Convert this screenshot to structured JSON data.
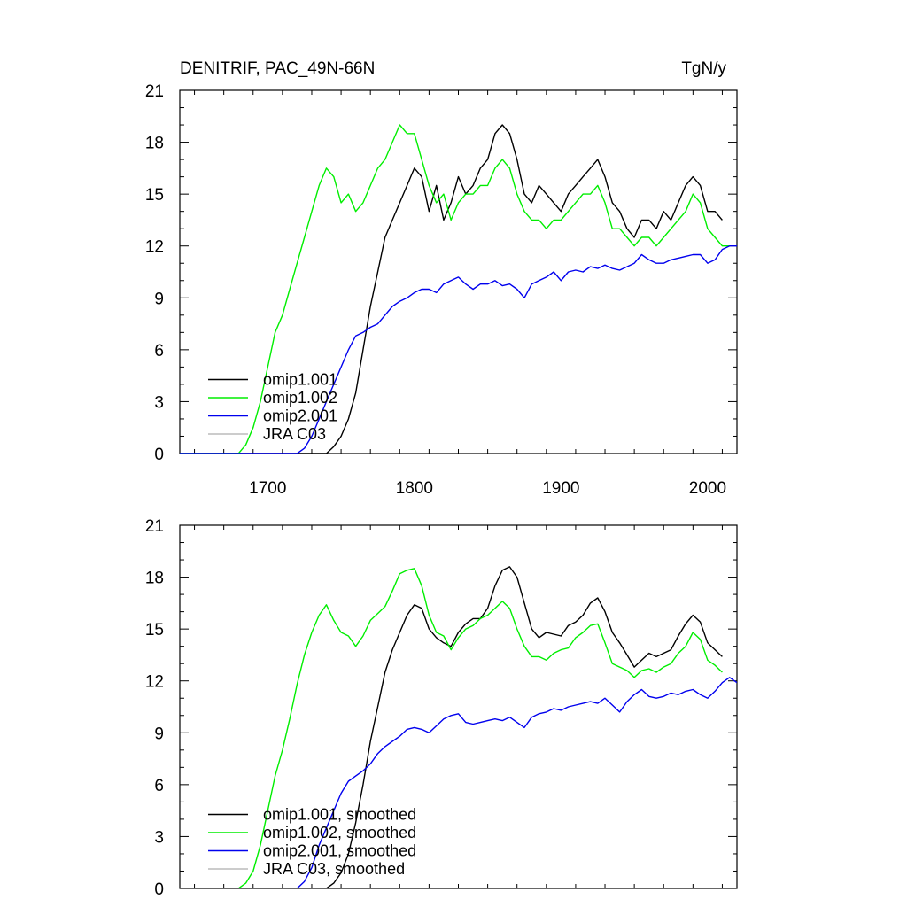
{
  "figure": {
    "title_left": "DENITRIF, PAC_49N-66N",
    "title_right": "TgN/y"
  },
  "chart_data": [
    {
      "type": "line",
      "panel": "top",
      "xlim": [
        1640,
        2020
      ],
      "ylim": [
        0,
        21
      ],
      "yticks": [
        0,
        3,
        6,
        9,
        12,
        15,
        18,
        21
      ],
      "xticks": [
        1700,
        1800,
        1900,
        2000
      ],
      "show_x_tick_labels": true,
      "legend_position": "bottom-left",
      "series": [
        {
          "name": "omip1.001",
          "color": "#000000",
          "x": [
            1640,
            1740,
            1745,
            1750,
            1755,
            1760,
            1765,
            1770,
            1775,
            1780,
            1785,
            1790,
            1795,
            1800,
            1805,
            1810,
            1815,
            1820,
            1825,
            1830,
            1835,
            1840,
            1845,
            1850,
            1855,
            1860,
            1865,
            1870,
            1875,
            1880,
            1885,
            1890,
            1895,
            1900,
            1905,
            1910,
            1915,
            1920,
            1925,
            1930,
            1935,
            1940,
            1945,
            1950,
            1955,
            1960,
            1965,
            1970,
            1975,
            1980,
            1985,
            1990,
            1995,
            2000,
            2005,
            2010
          ],
          "y": [
            0,
            0,
            0.4,
            1.0,
            2.0,
            3.5,
            6,
            8.5,
            10.5,
            12.5,
            13.5,
            14.5,
            15.5,
            16.5,
            16.0,
            14.0,
            15.5,
            13.5,
            14.5,
            16.0,
            15.0,
            15.5,
            16.5,
            17.0,
            18.5,
            19.0,
            18.5,
            17.0,
            15.0,
            14.5,
            15.5,
            15.0,
            14.5,
            14.0,
            15.0,
            15.5,
            16.0,
            16.5,
            17.0,
            16.0,
            14.5,
            14.0,
            13.0,
            12.5,
            13.5,
            13.5,
            13.0,
            14.0,
            13.5,
            14.5,
            15.5,
            16.0,
            15.5,
            14.0,
            14.0,
            13.5
          ]
        },
        {
          "name": "omip1.002",
          "color": "#00ee00",
          "x": [
            1640,
            1680,
            1685,
            1690,
            1695,
            1700,
            1705,
            1710,
            1715,
            1720,
            1725,
            1730,
            1735,
            1740,
            1745,
            1750,
            1755,
            1760,
            1765,
            1770,
            1775,
            1780,
            1785,
            1790,
            1795,
            1800,
            1805,
            1810,
            1815,
            1820,
            1825,
            1830,
            1835,
            1840,
            1845,
            1850,
            1855,
            1860,
            1865,
            1870,
            1875,
            1880,
            1885,
            1890,
            1895,
            1900,
            1905,
            1910,
            1915,
            1920,
            1925,
            1930,
            1935,
            1940,
            1945,
            1950,
            1955,
            1960,
            1965,
            1970,
            1975,
            1980,
            1985,
            1990,
            1995,
            2000,
            2005,
            2010,
            2015
          ],
          "y": [
            0,
            0,
            0.5,
            1.5,
            3.0,
            5.0,
            7.0,
            8.0,
            9.5,
            11.0,
            12.5,
            14.0,
            15.5,
            16.5,
            16.0,
            14.5,
            15.0,
            14.0,
            14.5,
            15.5,
            16.5,
            17.0,
            18.0,
            19.0,
            18.5,
            18.5,
            17.0,
            15.5,
            14.5,
            15.0,
            13.5,
            14.5,
            15.0,
            15.0,
            15.5,
            15.5,
            16.5,
            17.0,
            16.5,
            15.0,
            14.0,
            13.5,
            13.5,
            13.0,
            13.5,
            13.5,
            14.0,
            14.5,
            15.0,
            15.0,
            15.5,
            14.5,
            13.0,
            13.0,
            12.5,
            12.0,
            12.5,
            12.5,
            12.0,
            12.5,
            13.0,
            13.5,
            14.0,
            15.0,
            14.5,
            13.0,
            12.5,
            12.0,
            12.0
          ]
        },
        {
          "name": "omip2.001",
          "color": "#0000ee",
          "x": [
            1640,
            1720,
            1725,
            1730,
            1735,
            1740,
            1745,
            1750,
            1755,
            1760,
            1765,
            1770,
            1775,
            1780,
            1785,
            1790,
            1795,
            1800,
            1805,
            1810,
            1815,
            1820,
            1825,
            1830,
            1835,
            1840,
            1845,
            1850,
            1855,
            1860,
            1865,
            1870,
            1875,
            1880,
            1885,
            1890,
            1895,
            1900,
            1905,
            1910,
            1915,
            1920,
            1925,
            1930,
            1935,
            1940,
            1945,
            1950,
            1955,
            1960,
            1965,
            1970,
            1975,
            1980,
            1985,
            1990,
            1995,
            2000,
            2005,
            2010,
            2015,
            2020
          ],
          "y": [
            0,
            0,
            0.3,
            1.0,
            2.0,
            3.0,
            4.0,
            5.0,
            6.0,
            6.8,
            7.0,
            7.3,
            7.5,
            8.0,
            8.5,
            8.8,
            9.0,
            9.3,
            9.5,
            9.5,
            9.3,
            9.8,
            10.0,
            10.2,
            9.8,
            9.5,
            9.8,
            9.8,
            10.0,
            9.7,
            9.8,
            9.5,
            9.0,
            9.8,
            10.0,
            10.2,
            10.5,
            10.0,
            10.5,
            10.6,
            10.5,
            10.8,
            10.7,
            10.9,
            10.7,
            10.6,
            10.8,
            11.0,
            11.5,
            11.2,
            11.0,
            11.0,
            11.2,
            11.3,
            11.4,
            11.5,
            11.5,
            11.0,
            11.2,
            11.8,
            12.0,
            12.0
          ]
        },
        {
          "name": "JRA C03",
          "color": "#bbbbbb",
          "x": [],
          "y": []
        }
      ]
    },
    {
      "type": "line",
      "panel": "bottom",
      "xlim": [
        1640,
        2020
      ],
      "ylim": [
        0,
        21
      ],
      "yticks": [
        0,
        3,
        6,
        9,
        12,
        15,
        18,
        21
      ],
      "xticks": [
        1700,
        1800,
        1900,
        2000
      ],
      "show_x_tick_labels": false,
      "legend_position": "bottom-left",
      "series": [
        {
          "name": "omip1.001, smoothed",
          "color": "#000000",
          "x": [
            1640,
            1740,
            1745,
            1750,
            1755,
            1760,
            1765,
            1770,
            1775,
            1780,
            1785,
            1790,
            1795,
            1800,
            1805,
            1810,
            1815,
            1820,
            1825,
            1830,
            1835,
            1840,
            1845,
            1850,
            1855,
            1860,
            1865,
            1870,
            1875,
            1880,
            1885,
            1890,
            1895,
            1900,
            1905,
            1910,
            1915,
            1920,
            1925,
            1930,
            1935,
            1940,
            1945,
            1950,
            1955,
            1960,
            1965,
            1970,
            1975,
            1980,
            1985,
            1990,
            1995,
            2000,
            2005,
            2010
          ],
          "y": [
            0,
            0,
            0.3,
            0.9,
            2.0,
            3.8,
            6.0,
            8.5,
            10.5,
            12.5,
            13.8,
            14.8,
            15.8,
            16.4,
            16.2,
            15.0,
            14.5,
            14.2,
            14.0,
            14.8,
            15.3,
            15.6,
            15.6,
            16.2,
            17.5,
            18.4,
            18.6,
            18.0,
            16.5,
            15.0,
            14.5,
            14.8,
            14.7,
            14.6,
            15.2,
            15.4,
            15.8,
            16.5,
            16.8,
            16.0,
            14.8,
            14.2,
            13.5,
            12.8,
            13.2,
            13.6,
            13.4,
            13.6,
            13.8,
            14.6,
            15.3,
            15.8,
            15.4,
            14.2,
            13.8,
            13.4
          ]
        },
        {
          "name": "omip1.002, smoothed",
          "color": "#00ee00",
          "x": [
            1640,
            1680,
            1685,
            1690,
            1695,
            1700,
            1705,
            1710,
            1715,
            1720,
            1725,
            1730,
            1735,
            1740,
            1745,
            1750,
            1755,
            1760,
            1765,
            1770,
            1775,
            1780,
            1785,
            1790,
            1795,
            1800,
            1805,
            1810,
            1815,
            1820,
            1825,
            1830,
            1835,
            1840,
            1845,
            1850,
            1855,
            1860,
            1865,
            1870,
            1875,
            1880,
            1885,
            1890,
            1895,
            1900,
            1905,
            1910,
            1915,
            1920,
            1925,
            1930,
            1935,
            1940,
            1945,
            1950,
            1955,
            1960,
            1965,
            1970,
            1975,
            1980,
            1985,
            1990,
            1995,
            2000,
            2005,
            2010
          ],
          "y": [
            0,
            0,
            0.3,
            1.0,
            2.5,
            4.5,
            6.5,
            8.0,
            9.8,
            11.8,
            13.5,
            14.8,
            15.8,
            16.4,
            15.5,
            14.8,
            14.6,
            14.0,
            14.6,
            15.5,
            15.9,
            16.3,
            17.2,
            18.2,
            18.4,
            18.5,
            17.5,
            15.8,
            14.8,
            14.6,
            13.8,
            14.5,
            15.0,
            15.2,
            15.6,
            15.8,
            16.2,
            16.6,
            16.2,
            15.0,
            14.0,
            13.4,
            13.4,
            13.2,
            13.6,
            13.8,
            13.9,
            14.5,
            14.8,
            15.2,
            15.3,
            14.2,
            13.0,
            12.8,
            12.6,
            12.2,
            12.6,
            12.7,
            12.5,
            12.8,
            13.0,
            13.6,
            14.0,
            14.8,
            14.4,
            13.2,
            12.9,
            12.5
          ]
        },
        {
          "name": "omip2.001, smoothed",
          "color": "#0000ee",
          "x": [
            1640,
            1720,
            1725,
            1730,
            1735,
            1740,
            1745,
            1750,
            1755,
            1760,
            1765,
            1770,
            1775,
            1780,
            1785,
            1790,
            1795,
            1800,
            1805,
            1810,
            1815,
            1820,
            1825,
            1830,
            1835,
            1840,
            1845,
            1850,
            1855,
            1860,
            1865,
            1870,
            1875,
            1880,
            1885,
            1890,
            1895,
            1900,
            1905,
            1910,
            1915,
            1920,
            1925,
            1930,
            1935,
            1940,
            1945,
            1950,
            1955,
            1960,
            1965,
            1970,
            1975,
            1980,
            1985,
            1990,
            1995,
            2000,
            2005,
            2010,
            2015,
            2020
          ],
          "y": [
            0,
            0,
            0.4,
            1.2,
            2.5,
            3.5,
            4.5,
            5.5,
            6.2,
            6.5,
            6.8,
            7.2,
            7.8,
            8.2,
            8.5,
            8.8,
            9.2,
            9.3,
            9.2,
            9.0,
            9.4,
            9.8,
            10.0,
            10.1,
            9.6,
            9.5,
            9.6,
            9.7,
            9.8,
            9.7,
            9.9,
            9.6,
            9.3,
            9.9,
            10.1,
            10.2,
            10.4,
            10.3,
            10.5,
            10.6,
            10.7,
            10.8,
            10.7,
            11.0,
            10.6,
            10.2,
            10.8,
            11.2,
            11.5,
            11.1,
            11.0,
            11.1,
            11.3,
            11.2,
            11.4,
            11.5,
            11.2,
            11.0,
            11.4,
            11.9,
            12.2,
            11.9
          ]
        },
        {
          "name": "JRA C03, smoothed",
          "color": "#bbbbbb",
          "x": [],
          "y": []
        }
      ]
    }
  ]
}
